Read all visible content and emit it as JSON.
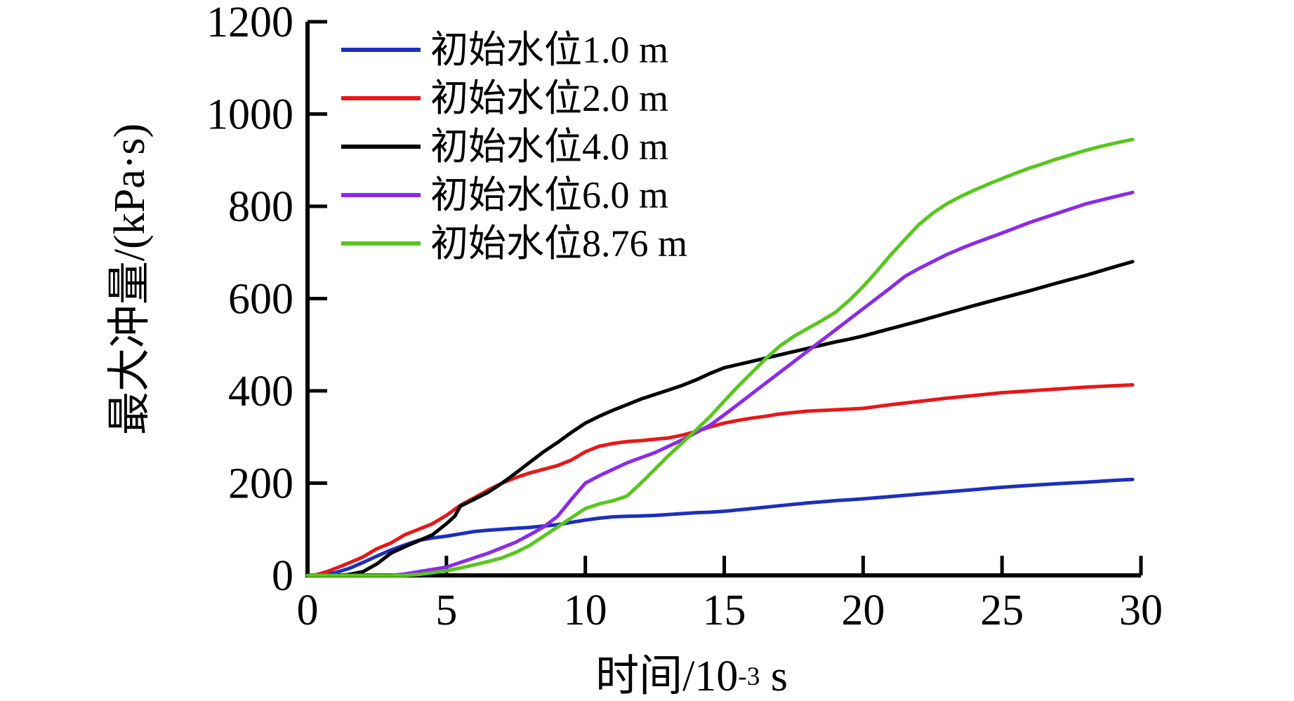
{
  "figure": {
    "background": "#ffffff",
    "axis_color": "#000000"
  },
  "chart_data": {
    "type": "line",
    "title": "",
    "xlabel": {
      "prefix": "时间/10",
      "superscript": "-3",
      "suffix": " s"
    },
    "ylabel": "最大冲量/(kPa·s)",
    "xlim": [
      0,
      30
    ],
    "ylim": [
      0,
      1200
    ],
    "x_ticks": [
      0,
      5,
      10,
      15,
      20,
      25,
      30
    ],
    "y_ticks": [
      0,
      200,
      400,
      600,
      800,
      1000,
      1200
    ],
    "grid": false,
    "legend_position": "upper-left-inside",
    "series": [
      {
        "label": "初始水位1.0 m",
        "color": "#1C2FC0",
        "points": [
          [
            0,
            0
          ],
          [
            0.5,
            1
          ],
          [
            1,
            6
          ],
          [
            1.5,
            15
          ],
          [
            2,
            28
          ],
          [
            2.5,
            42
          ],
          [
            3,
            55
          ],
          [
            3.5,
            66
          ],
          [
            4,
            76
          ],
          [
            4.5,
            81
          ],
          [
            5,
            85
          ],
          [
            5.5,
            90
          ],
          [
            6,
            95
          ],
          [
            6.5,
            98
          ],
          [
            7,
            100
          ],
          [
            7.5,
            102
          ],
          [
            8,
            104
          ],
          [
            8.5,
            107
          ],
          [
            9,
            110
          ],
          [
            9.5,
            115
          ],
          [
            10,
            120
          ],
          [
            10.5,
            124
          ],
          [
            11,
            127
          ],
          [
            11.5,
            128
          ],
          [
            12,
            129
          ],
          [
            12.5,
            130
          ],
          [
            13,
            132
          ],
          [
            13.5,
            134
          ],
          [
            14,
            136
          ],
          [
            14.5,
            137
          ],
          [
            15,
            139
          ],
          [
            16,
            145
          ],
          [
            17,
            151
          ],
          [
            18,
            157
          ],
          [
            19,
            162
          ],
          [
            20,
            166
          ],
          [
            21,
            171
          ],
          [
            22,
            176
          ],
          [
            23,
            181
          ],
          [
            24,
            186
          ],
          [
            25,
            191
          ],
          [
            26,
            195
          ],
          [
            27,
            199
          ],
          [
            28,
            202
          ],
          [
            29,
            206
          ],
          [
            29.7,
            208
          ]
        ]
      },
      {
        "label": "初始水位2.0 m",
        "color": "#E81717",
        "points": [
          [
            0,
            0
          ],
          [
            0.3,
            1
          ],
          [
            0.7,
            8
          ],
          [
            1,
            15
          ],
          [
            1.5,
            27
          ],
          [
            2,
            40
          ],
          [
            2.5,
            58
          ],
          [
            3,
            70
          ],
          [
            3.5,
            88
          ],
          [
            4,
            100
          ],
          [
            4.5,
            112
          ],
          [
            5,
            130
          ],
          [
            5.5,
            152
          ],
          [
            6,
            168
          ],
          [
            6.5,
            185
          ],
          [
            7,
            200
          ],
          [
            7.5,
            212
          ],
          [
            8,
            222
          ],
          [
            8.5,
            230
          ],
          [
            9,
            238
          ],
          [
            9.5,
            250
          ],
          [
            10,
            268
          ],
          [
            10.5,
            280
          ],
          [
            11,
            286
          ],
          [
            11.5,
            290
          ],
          [
            12,
            292
          ],
          [
            12.5,
            295
          ],
          [
            13,
            298
          ],
          [
            13.5,
            304
          ],
          [
            14,
            312
          ],
          [
            14.5,
            322
          ],
          [
            15,
            330
          ],
          [
            15.5,
            336
          ],
          [
            16,
            341
          ],
          [
            16.5,
            345
          ],
          [
            17,
            350
          ],
          [
            17.5,
            353
          ],
          [
            18,
            356
          ],
          [
            19,
            359
          ],
          [
            20,
            362
          ],
          [
            21,
            370
          ],
          [
            22,
            377
          ],
          [
            23,
            384
          ],
          [
            24,
            390
          ],
          [
            25,
            396
          ],
          [
            26,
            400
          ],
          [
            27,
            404
          ],
          [
            28,
            408
          ],
          [
            29,
            411
          ],
          [
            29.7,
            413
          ]
        ]
      },
      {
        "label": "初始水位4.0 m",
        "color": "#000000",
        "points": [
          [
            0,
            0
          ],
          [
            1,
            0
          ],
          [
            1.4,
            1
          ],
          [
            2,
            8
          ],
          [
            2.5,
            25
          ],
          [
            3,
            48
          ],
          [
            3.5,
            62
          ],
          [
            4,
            75
          ],
          [
            4.5,
            88
          ],
          [
            5,
            112
          ],
          [
            5.3,
            128
          ],
          [
            5.5,
            150
          ],
          [
            6,
            165
          ],
          [
            6.5,
            180
          ],
          [
            7,
            200
          ],
          [
            7.5,
            222
          ],
          [
            8,
            245
          ],
          [
            8.5,
            268
          ],
          [
            9,
            288
          ],
          [
            9.5,
            310
          ],
          [
            10,
            330
          ],
          [
            10.5,
            345
          ],
          [
            11,
            358
          ],
          [
            11.5,
            370
          ],
          [
            12,
            382
          ],
          [
            12.5,
            392
          ],
          [
            13,
            402
          ],
          [
            13.5,
            412
          ],
          [
            14,
            424
          ],
          [
            14.5,
            438
          ],
          [
            15,
            450
          ],
          [
            15.5,
            457
          ],
          [
            16,
            464
          ],
          [
            16.5,
            471
          ],
          [
            17,
            478
          ],
          [
            17.5,
            485
          ],
          [
            18,
            492
          ],
          [
            18.5,
            499
          ],
          [
            19,
            506
          ],
          [
            19.5,
            512
          ],
          [
            20,
            519
          ],
          [
            21,
            535
          ],
          [
            22,
            551
          ],
          [
            23,
            568
          ],
          [
            24,
            585
          ],
          [
            25,
            601
          ],
          [
            26,
            617
          ],
          [
            27,
            634
          ],
          [
            28,
            650
          ],
          [
            29,
            668
          ],
          [
            29.7,
            680
          ]
        ]
      },
      {
        "label": "初始水位6.0 m",
        "color": "#8B2BE8",
        "points": [
          [
            0,
            0
          ],
          [
            3,
            0
          ],
          [
            3.5,
            3
          ],
          [
            4,
            8
          ],
          [
            4.5,
            13
          ],
          [
            5,
            18
          ],
          [
            5.5,
            28
          ],
          [
            6,
            38
          ],
          [
            6.5,
            48
          ],
          [
            7,
            60
          ],
          [
            7.5,
            72
          ],
          [
            8,
            88
          ],
          [
            8.5,
            105
          ],
          [
            9,
            128
          ],
          [
            9.5,
            165
          ],
          [
            10,
            200
          ],
          [
            10.5,
            216
          ],
          [
            11,
            230
          ],
          [
            11.5,
            244
          ],
          [
            12,
            255
          ],
          [
            12.5,
            266
          ],
          [
            13,
            280
          ],
          [
            13.5,
            294
          ],
          [
            14,
            310
          ],
          [
            14.5,
            326
          ],
          [
            15,
            348
          ],
          [
            15.5,
            371
          ],
          [
            16,
            394
          ],
          [
            16.5,
            417
          ],
          [
            17,
            440
          ],
          [
            17.5,
            463
          ],
          [
            18,
            486
          ],
          [
            18.5,
            509
          ],
          [
            19,
            532
          ],
          [
            19.5,
            555
          ],
          [
            20,
            578
          ],
          [
            20.5,
            601
          ],
          [
            21,
            624
          ],
          [
            21.5,
            648
          ],
          [
            22,
            665
          ],
          [
            22.5,
            680
          ],
          [
            23,
            695
          ],
          [
            23.5,
            708
          ],
          [
            24,
            720
          ],
          [
            24.5,
            731
          ],
          [
            25,
            742
          ],
          [
            26,
            765
          ],
          [
            27,
            785
          ],
          [
            28,
            805
          ],
          [
            29,
            820
          ],
          [
            29.7,
            830
          ]
        ]
      },
      {
        "label": "初始水位8.76 m",
        "color": "#57C61C",
        "points": [
          [
            0,
            0
          ],
          [
            3.5,
            0
          ],
          [
            4,
            2
          ],
          [
            4.5,
            6
          ],
          [
            5,
            10
          ],
          [
            5.5,
            16
          ],
          [
            6,
            23
          ],
          [
            6.5,
            30
          ],
          [
            7,
            38
          ],
          [
            7.5,
            50
          ],
          [
            8,
            65
          ],
          [
            8.5,
            85
          ],
          [
            9,
            105
          ],
          [
            9.5,
            125
          ],
          [
            10,
            145
          ],
          [
            10.5,
            155
          ],
          [
            11,
            162
          ],
          [
            11.5,
            172
          ],
          [
            12,
            200
          ],
          [
            12.5,
            230
          ],
          [
            13,
            260
          ],
          [
            13.5,
            288
          ],
          [
            14,
            316
          ],
          [
            14.5,
            345
          ],
          [
            15,
            378
          ],
          [
            15.5,
            410
          ],
          [
            16,
            440
          ],
          [
            16.5,
            470
          ],
          [
            17,
            497
          ],
          [
            17.5,
            518
          ],
          [
            18,
            535
          ],
          [
            18.5,
            552
          ],
          [
            19,
            570
          ],
          [
            19.5,
            596
          ],
          [
            20,
            626
          ],
          [
            20.5,
            660
          ],
          [
            21,
            695
          ],
          [
            21.5,
            728
          ],
          [
            22,
            760
          ],
          [
            22.5,
            785
          ],
          [
            23,
            805
          ],
          [
            23.5,
            821
          ],
          [
            24,
            835
          ],
          [
            24.5,
            848
          ],
          [
            25,
            860
          ],
          [
            25.5,
            872
          ],
          [
            26,
            883
          ],
          [
            26.5,
            893
          ],
          [
            27,
            903
          ],
          [
            27.5,
            912
          ],
          [
            28,
            921
          ],
          [
            28.5,
            929
          ],
          [
            29,
            936
          ],
          [
            29.7,
            945
          ]
        ]
      }
    ]
  }
}
